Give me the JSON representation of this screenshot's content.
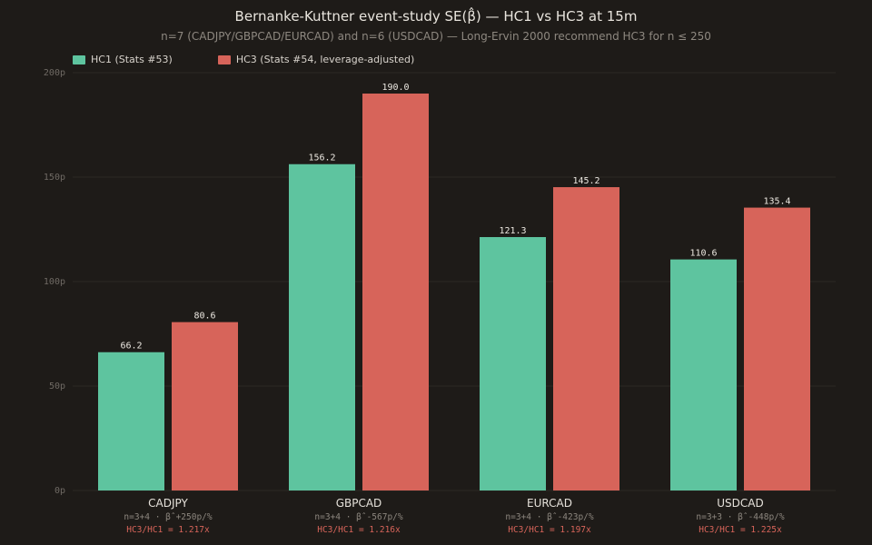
{
  "title": "Bernanke-Kuttner event-study SE(β̂) — HC1 vs HC3 at 15m",
  "subtitle": "n=7 (CADJPY/GBPCAD/EURCAD) and n=6 (USDCAD) — Long-Ervin 2000 recommend HC3 for n ≤ 250",
  "colors": {
    "background": "#1e1b18",
    "hc1": "#5ec49f",
    "hc3": "#d7645a",
    "grid": "#2c2925",
    "tick_text": "#6f6a64",
    "value_text": "#ece8e1",
    "category_text": "#e6e2db",
    "detail_text": "#8c867e",
    "ratio_text": "#d7645a"
  },
  "chart_data": {
    "type": "bar",
    "title": "Bernanke-Kuttner event-study SE(β̂) — HC1 vs HC3 at 15m",
    "subtitle": "n=7 (CADJPY/GBPCAD/EURCAD) and n=6 (USDCAD) — Long-Ervin 2000 recommend HC3 for n ≤ 250",
    "categories": [
      "CADJPY",
      "GBPCAD",
      "EURCAD",
      "USDCAD"
    ],
    "series": [
      {
        "name": "HC1 (Stats #53)",
        "values": [
          66.2,
          156.2,
          121.3,
          110.6
        ],
        "labels": [
          "66.2",
          "156.2",
          "121.3",
          "110.6"
        ],
        "color": "#5ec49f"
      },
      {
        "name": "HC3 (Stats #54, leverage-adjusted)",
        "values": [
          80.6,
          190.0,
          145.2,
          135.4
        ],
        "labels": [
          "80.6",
          "190.0",
          "145.2",
          "135.4"
        ],
        "color": "#d7645a"
      }
    ],
    "category_details": [
      "n=3+4 · β̂ +250p/%",
      "n=3+4 · β̂ -567p/%",
      "n=3+4 · β̂ -423p/%",
      "n=3+3 · β̂ -448p/%"
    ],
    "ratios": [
      "HC3/HC1 = 1.217x",
      "HC3/HC1 = 1.216x",
      "HC3/HC1 = 1.197x",
      "HC3/HC1 = 1.225x"
    ],
    "y_ticks": [
      0,
      50,
      100,
      150,
      200
    ],
    "y_tick_labels": [
      "0p",
      "50p",
      "100p",
      "150p",
      "200p"
    ],
    "ylim": [
      0,
      200
    ],
    "grid": true,
    "legend_position": "top-left"
  }
}
